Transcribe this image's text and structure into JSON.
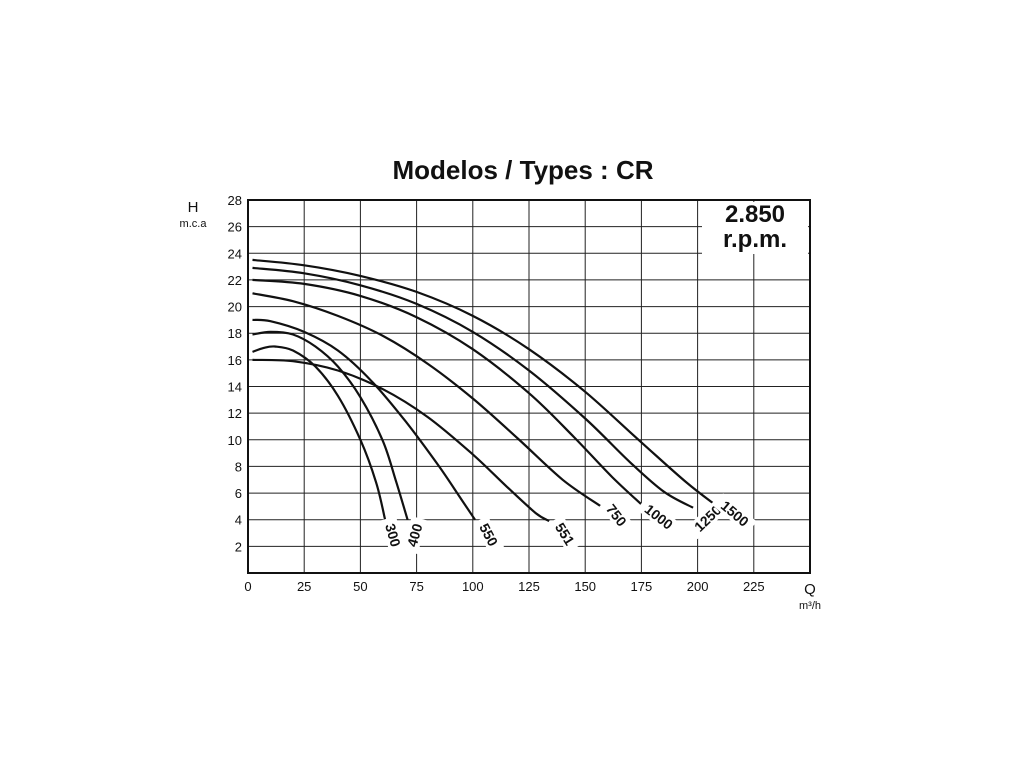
{
  "chart_data": {
    "type": "line",
    "title": "Modelos / Types : CR",
    "rpm_line1": "2.850",
    "rpm_line2": "r.p.m.",
    "y_symbol": "H",
    "y_unit": "m.c.a",
    "x_symbol": "Q",
    "x_unit": "m³/h",
    "xlim": [
      0,
      250
    ],
    "ylim": [
      0,
      28
    ],
    "x_ticks": [
      0,
      25,
      50,
      75,
      100,
      125,
      150,
      175,
      200,
      225
    ],
    "y_ticks": [
      2,
      4,
      6,
      8,
      10,
      12,
      14,
      16,
      18,
      20,
      22,
      24,
      26,
      28
    ],
    "grid": true,
    "series": [
      {
        "name": "300",
        "points": [
          [
            2,
            16.6
          ],
          [
            7,
            16.9
          ],
          [
            12,
            17.0
          ],
          [
            20,
            16.7
          ],
          [
            30,
            15.5
          ],
          [
            40,
            13.3
          ],
          [
            50,
            10.0
          ],
          [
            57,
            6.8
          ],
          [
            61,
            4.0
          ]
        ]
      },
      {
        "name": "400",
        "points": [
          [
            2,
            17.9
          ],
          [
            10,
            18.1
          ],
          [
            20,
            17.9
          ],
          [
            30,
            17.0
          ],
          [
            40,
            15.5
          ],
          [
            50,
            13.2
          ],
          [
            60,
            9.9
          ],
          [
            66,
            6.8
          ],
          [
            71,
            4.0
          ]
        ]
      },
      {
        "name": "550",
        "points": [
          [
            2,
            19.0
          ],
          [
            10,
            18.9
          ],
          [
            25,
            18.1
          ],
          [
            40,
            16.7
          ],
          [
            55,
            14.4
          ],
          [
            70,
            11.4
          ],
          [
            85,
            8.0
          ],
          [
            95,
            5.5
          ],
          [
            101,
            4.0
          ]
        ]
      },
      {
        "name": "551",
        "points": [
          [
            2,
            16.0
          ],
          [
            20,
            15.9
          ],
          [
            40,
            15.2
          ],
          [
            60,
            13.8
          ],
          [
            80,
            11.7
          ],
          [
            100,
            8.9
          ],
          [
            115,
            6.5
          ],
          [
            128,
            4.5
          ],
          [
            134,
            3.9
          ]
        ]
      },
      {
        "name": "750",
        "points": [
          [
            2,
            21.0
          ],
          [
            20,
            20.4
          ],
          [
            40,
            19.3
          ],
          [
            60,
            17.8
          ],
          [
            80,
            15.7
          ],
          [
            100,
            13.1
          ],
          [
            120,
            10.1
          ],
          [
            140,
            7.0
          ],
          [
            157,
            5.0
          ]
        ]
      },
      {
        "name": "1000",
        "points": [
          [
            2,
            22.0
          ],
          [
            25,
            21.7
          ],
          [
            50,
            20.8
          ],
          [
            75,
            19.2
          ],
          [
            100,
            16.8
          ],
          [
            125,
            13.5
          ],
          [
            145,
            10.2
          ],
          [
            162,
            7.2
          ],
          [
            176,
            5.0
          ]
        ]
      },
      {
        "name": "1250",
        "points": [
          [
            2,
            22.9
          ],
          [
            25,
            22.5
          ],
          [
            50,
            21.6
          ],
          [
            75,
            20.2
          ],
          [
            100,
            18.1
          ],
          [
            125,
            15.2
          ],
          [
            150,
            11.6
          ],
          [
            170,
            8.3
          ],
          [
            185,
            6.1
          ],
          [
            198,
            4.9
          ]
        ]
      },
      {
        "name": "1500",
        "points": [
          [
            2,
            23.5
          ],
          [
            25,
            23.1
          ],
          [
            50,
            22.3
          ],
          [
            75,
            21.1
          ],
          [
            100,
            19.3
          ],
          [
            125,
            16.8
          ],
          [
            150,
            13.6
          ],
          [
            175,
            9.8
          ],
          [
            195,
            6.8
          ],
          [
            208,
            5.1
          ]
        ]
      }
    ]
  }
}
